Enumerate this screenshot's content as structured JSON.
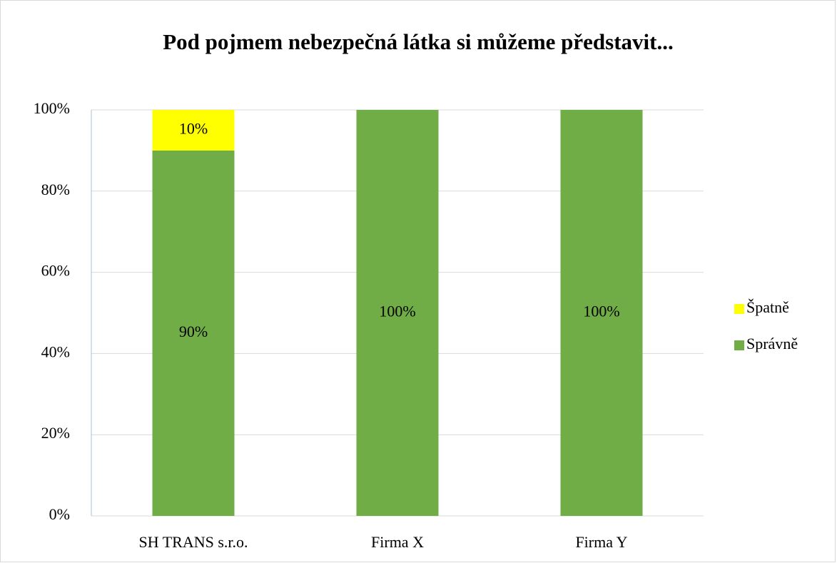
{
  "chart_data": {
    "type": "stacked_bar",
    "title": "Pod pojmem nebezpečná látka si můžeme představit...",
    "categories": [
      "SH TRANS s.r.o.",
      "Firma X",
      "Firma Y"
    ],
    "series": [
      {
        "name": "Správně",
        "color": "#70ad47",
        "values": [
          90,
          100,
          100
        ],
        "value_labels": [
          "90%",
          "100%",
          "100%"
        ]
      },
      {
        "name": "Špatně",
        "color": "#ffff00",
        "values": [
          10,
          0,
          0
        ],
        "value_labels": [
          "10%",
          null,
          null
        ]
      }
    ],
    "ylim": [
      0,
      100
    ],
    "yticks": [
      {
        "value": 0,
        "label": "0%"
      },
      {
        "value": 20,
        "label": "20%"
      },
      {
        "value": 40,
        "label": "40%"
      },
      {
        "value": 60,
        "label": "60%"
      },
      {
        "value": 80,
        "label": "80%"
      },
      {
        "value": 100,
        "label": "100%"
      }
    ],
    "grid": true,
    "legend": "right"
  }
}
